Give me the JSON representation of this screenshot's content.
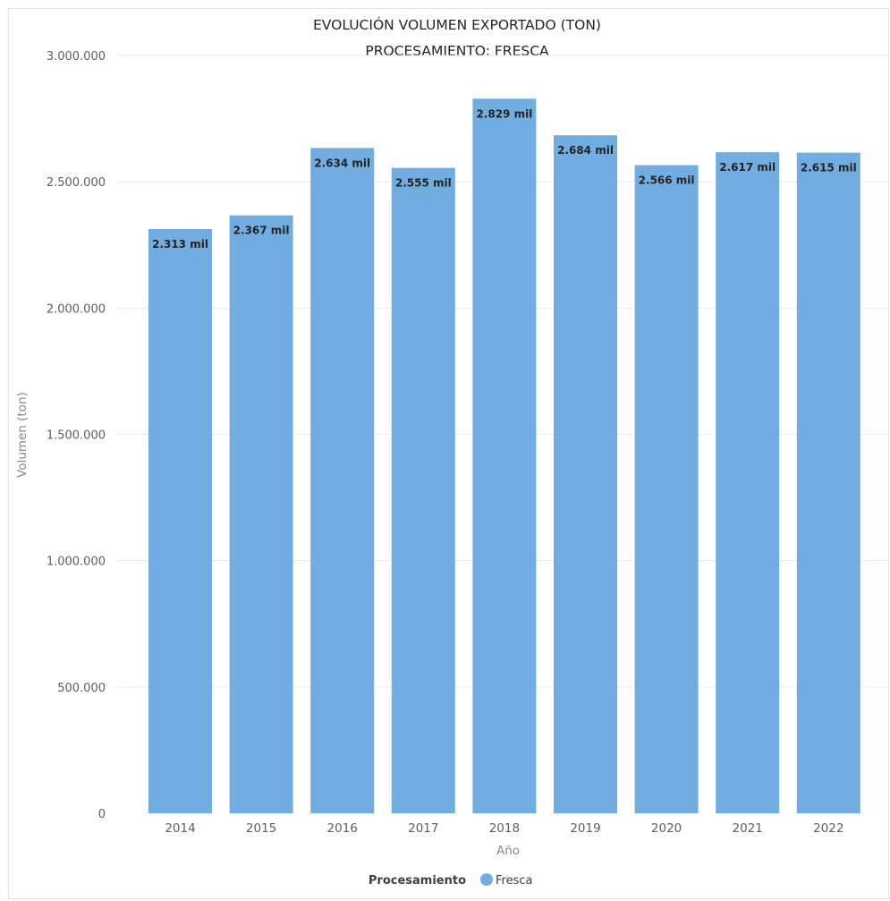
{
  "chart_data": {
    "type": "bar",
    "title": [
      "EVOLUCIÓN VOLUMEN EXPORTADO (TON)",
      "PROCESAMIENTO: FRESCA"
    ],
    "xlabel": "Año",
    "ylabel": "Volumen (ton)",
    "categories": [
      "2014",
      "2015",
      "2016",
      "2017",
      "2018",
      "2019",
      "2020",
      "2021",
      "2022"
    ],
    "series": [
      {
        "name": "Fresca",
        "color": "#71ade1",
        "values": [
          2313000,
          2367000,
          2634000,
          2555000,
          2829000,
          2684000,
          2566000,
          2617000,
          2615000
        ],
        "data_labels": [
          "2.313 mil",
          "2.367 mil",
          "2.634 mil",
          "2.555 mil",
          "2.829 mil",
          "2.684 mil",
          "2.566 mil",
          "2.617 mil",
          "2.615 mil"
        ]
      }
    ],
    "ylim": [
      0,
      3000000
    ],
    "yticks": [
      0,
      500000,
      1000000,
      1500000,
      2000000,
      2500000,
      3000000
    ],
    "ytick_labels": [
      "0",
      "500.000",
      "1.000.000",
      "1.500.000",
      "2.000.000",
      "2.500.000",
      "3.000.000"
    ],
    "grid": true,
    "legend": {
      "title": "Procesamiento",
      "placement": "bottom-center"
    }
  }
}
